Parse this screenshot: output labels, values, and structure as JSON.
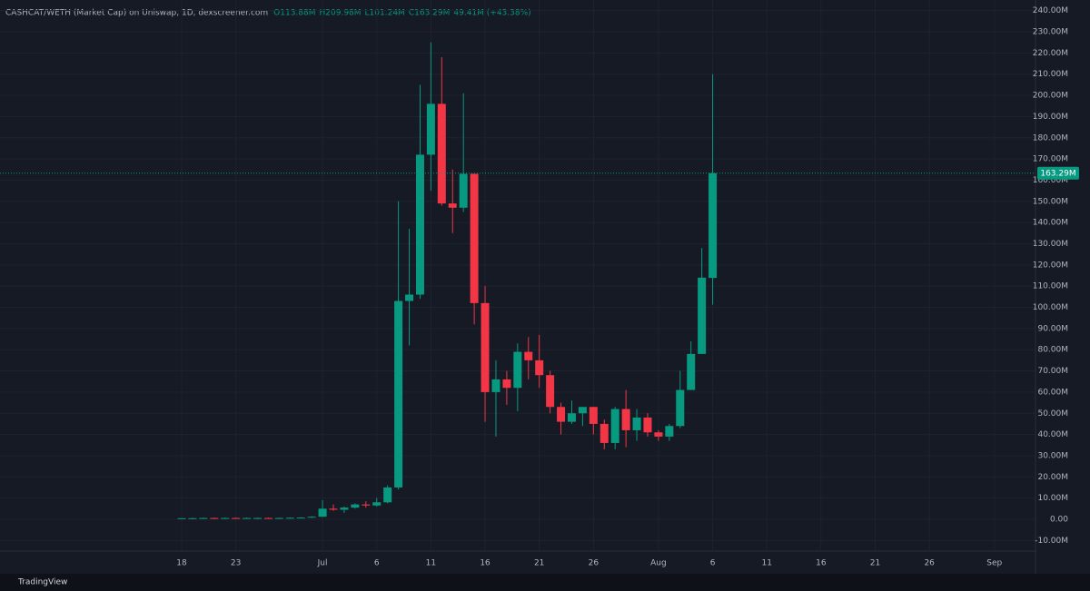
{
  "chart_data": {
    "type": "candlestick",
    "title": "CASHCAT/WETH (Market Cap) on Uniswap, 1D, dexscreener.com",
    "ohlc_legend": [
      "O113.88M",
      "H209.98M",
      "L101.24M",
      "C163.29M",
      "49.41M (+43.38%)"
    ],
    "last_price_label": "163.29M",
    "branding": "TradingView",
    "up_color": "#089981",
    "down_color": "#f23645",
    "categories": [
      "18",
      null,
      null,
      null,
      null,
      "23",
      null,
      null,
      null,
      null,
      null,
      null,
      null,
      "Jul",
      null,
      null,
      null,
      null,
      "6",
      null,
      null,
      null,
      null,
      "11",
      null,
      null,
      null,
      null,
      "16",
      null,
      null,
      null,
      null,
      "21",
      null,
      null,
      null,
      null,
      "26",
      null,
      null,
      null,
      null,
      null,
      "Aug",
      null,
      null,
      null,
      null,
      "6",
      null,
      null,
      null,
      null,
      "11",
      null,
      null,
      null,
      null,
      "16",
      null,
      null,
      null,
      null,
      "21",
      null,
      null,
      null,
      null,
      "26",
      null,
      null,
      null,
      null,
      null,
      "Sep",
      null,
      null
    ],
    "open": [
      0.4,
      0.5,
      0.5,
      0.6,
      0.5,
      0.6,
      0.5,
      0.6,
      0.6,
      0.5,
      0.6,
      0.7,
      0.8,
      1.2,
      5,
      4.5,
      5.5,
      7,
      6.5,
      8,
      15,
      103,
      106,
      172,
      196,
      149,
      147,
      163,
      102,
      60,
      66,
      62,
      79,
      75,
      68,
      53,
      46,
      50,
      53,
      45,
      36,
      52,
      42,
      48,
      41,
      39,
      44,
      61,
      78,
      113.88,
      null,
      null,
      null,
      null,
      null,
      null,
      null,
      null,
      null,
      null,
      null,
      null,
      null,
      null,
      null,
      null,
      null,
      null,
      null,
      null,
      null,
      null,
      null,
      null,
      null,
      null,
      null,
      null
    ],
    "high": [
      0.6,
      0.7,
      0.8,
      0.8,
      0.8,
      0.8,
      0.8,
      0.8,
      0.8,
      0.8,
      0.9,
      1.0,
      1.4,
      9,
      7,
      6,
      7.5,
      8.5,
      10,
      16,
      150,
      137,
      205,
      225,
      218,
      165,
      201,
      163,
      110,
      75,
      70,
      83,
      86,
      87,
      70,
      55,
      56,
      53,
      53,
      47,
      53,
      61,
      52,
      50,
      42,
      45,
      70,
      84,
      128,
      209.98,
      null,
      null,
      null,
      null,
      null,
      null,
      null,
      null,
      null,
      null,
      null,
      null,
      null,
      null,
      null,
      null,
      null,
      null,
      null,
      null,
      null,
      null,
      null,
      null,
      null,
      null,
      null,
      null
    ],
    "low": [
      0.2,
      0.3,
      0.3,
      0.3,
      0.3,
      0.3,
      0.3,
      0.4,
      0.3,
      0.3,
      0.4,
      0.5,
      0.6,
      1.0,
      4,
      3,
      5,
      5.5,
      6,
      7.5,
      14,
      82,
      104,
      155,
      148,
      135,
      145,
      92,
      46,
      39,
      54,
      51,
      66,
      62,
      50,
      40,
      45,
      44,
      40,
      33,
      33,
      34,
      37,
      39,
      37,
      37,
      43,
      61,
      78,
      101.24,
      null,
      null,
      null,
      null,
      null,
      null,
      null,
      null,
      null,
      null,
      null,
      null,
      null,
      null,
      null,
      null,
      null,
      null,
      null,
      null,
      null,
      null,
      null,
      null,
      null,
      null,
      null,
      null
    ],
    "close": [
      0.5,
      0.5,
      0.6,
      0.5,
      0.6,
      0.5,
      0.6,
      0.6,
      0.5,
      0.6,
      0.7,
      0.8,
      1.2,
      5,
      4.5,
      5.5,
      7,
      6.5,
      8,
      15,
      103,
      106,
      172,
      196,
      149,
      147,
      163,
      102,
      60,
      66,
      62,
      79,
      75,
      68,
      53,
      46,
      50,
      53,
      45,
      36,
      52,
      42,
      48,
      41,
      39,
      44,
      61,
      78,
      114,
      163.29,
      null,
      null,
      null,
      null,
      null,
      null,
      null,
      null,
      null,
      null,
      null,
      null,
      null,
      null,
      null,
      null,
      null,
      null,
      null,
      null,
      null,
      null,
      null,
      null,
      null,
      null,
      null,
      null
    ],
    "ylim": [
      -15,
      245
    ],
    "yticks": [
      {
        "value": 240,
        "label": "240.00M"
      },
      {
        "value": 230,
        "label": "230.00M"
      },
      {
        "value": 220,
        "label": "220.00M"
      },
      {
        "value": 210,
        "label": "210.00M"
      },
      {
        "value": 200,
        "label": "200.00M"
      },
      {
        "value": 190,
        "label": "190.00M"
      },
      {
        "value": 180,
        "label": "180.00M"
      },
      {
        "value": 170,
        "label": "170.00M"
      },
      {
        "value": 160,
        "label": "160.00M"
      },
      {
        "value": 150,
        "label": "150.00M"
      },
      {
        "value": 140,
        "label": "140.00M"
      },
      {
        "value": 130,
        "label": "130.00M"
      },
      {
        "value": 120,
        "label": "120.00M"
      },
      {
        "value": 110,
        "label": "110.00M"
      },
      {
        "value": 100,
        "label": "100.00M"
      },
      {
        "value": 90,
        "label": "90.00M"
      },
      {
        "value": 80,
        "label": "80.00M"
      },
      {
        "value": 70,
        "label": "70.00M"
      },
      {
        "value": 60,
        "label": "60.00M"
      },
      {
        "value": 50,
        "label": "50.00M"
      },
      {
        "value": 40,
        "label": "40.00M"
      },
      {
        "value": 30,
        "label": "30.00M"
      },
      {
        "value": 20,
        "label": "20.00M"
      },
      {
        "value": 10,
        "label": "10.00M"
      },
      {
        "value": 0,
        "label": "0.00"
      },
      {
        "value": -10,
        "label": "-10.00M"
      }
    ],
    "grid": true
  }
}
